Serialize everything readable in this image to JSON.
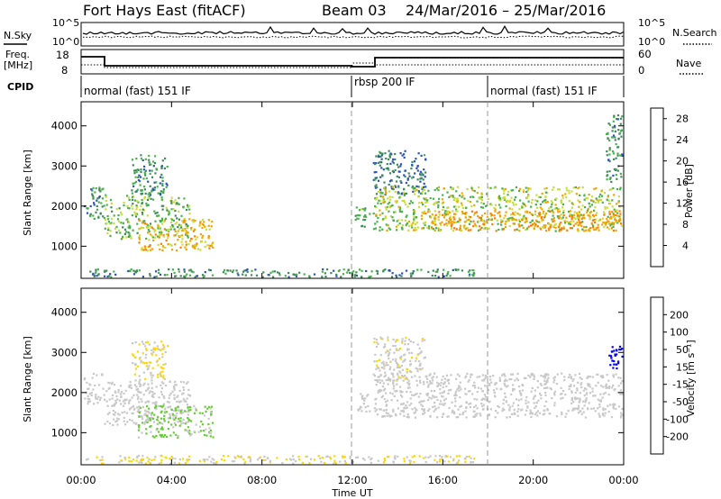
{
  "header": {
    "radar_title": "Fort Hays East (fitACF)",
    "beam_label": "Beam 03",
    "date_range": "24/Mar/2016 – 25/Mar/2016"
  },
  "summary": {
    "nsky_label": "N.Sky",
    "nsearch_label": "N.Search",
    "noise_ticks": [
      "10^5",
      "10^0"
    ],
    "freq_label": "Freq.",
    "freq_unit": "[MHz]",
    "freq_ticks": [
      "18",
      "8"
    ],
    "nave_label": "Nave",
    "nave_ticks": [
      "60",
      "0"
    ],
    "cpid_label": "CPID",
    "modes": [
      {
        "label": "normal (fast) 151 IF",
        "start_hour": 0
      },
      {
        "label": "rbsp 200 IF",
        "start_hour": 12
      },
      {
        "label": "normal (fast) 151 IF",
        "start_hour": 18
      }
    ]
  },
  "xaxis": {
    "label": "Time UT",
    "ticks": [
      "00:00",
      "04:00",
      "08:00",
      "12:00",
      "16:00",
      "20:00",
      "00:00"
    ],
    "range_hours": [
      0,
      24
    ]
  },
  "chart_data": [
    {
      "type": "heatmap",
      "title": "",
      "ylabel": "Slant Range [km]",
      "yticks": [
        "1000",
        "2000",
        "3000",
        "4000"
      ],
      "ylim": [
        200,
        4600
      ],
      "xlim": [
        0,
        24
      ],
      "colorbar": {
        "label": "Power [dB]",
        "ticks": [
          "4",
          "8",
          "12",
          "16",
          "20",
          "24",
          "28"
        ],
        "range": [
          0,
          30
        ],
        "colors": [
          "#0000ff",
          "#2a52b8",
          "#3e8a5a",
          "#46b34a",
          "#c8dc3a",
          "#f2a500",
          "#ff7a00",
          "#ff2a00"
        ]
      },
      "dashed_lines_hours": [
        12,
        18
      ],
      "regions": [
        {
          "t0": 0.1,
          "t1": 1.0,
          "r0": 1700,
          "r1": 2500,
          "v": 10
        },
        {
          "t0": 1.0,
          "t1": 4.8,
          "r0": 1200,
          "r1": 2300,
          "v": 14
        },
        {
          "t0": 2.5,
          "t1": 5.8,
          "r0": 900,
          "r1": 1700,
          "v": 20
        },
        {
          "t0": 2.2,
          "t1": 3.8,
          "r0": 2300,
          "r1": 3300,
          "v": 10
        },
        {
          "t0": 12.1,
          "t1": 12.8,
          "r0": 1500,
          "r1": 2000,
          "v": 12
        },
        {
          "t0": 12.9,
          "t1": 15.2,
          "r0": 2300,
          "r1": 3400,
          "v": 8
        },
        {
          "t0": 12.9,
          "t1": 23.9,
          "r0": 1400,
          "r1": 2500,
          "v": 16
        },
        {
          "t0": 15.0,
          "t1": 23.9,
          "r0": 1400,
          "r1": 1900,
          "v": 22
        },
        {
          "t0": 23.2,
          "t1": 23.9,
          "r0": 2600,
          "r1": 4300,
          "v": 10
        },
        {
          "t0": 0.2,
          "t1": 17.5,
          "r0": 250,
          "r1": 450,
          "v": 10
        }
      ]
    },
    {
      "type": "heatmap",
      "title": "",
      "ylabel": "Slant Range [km]",
      "yticks": [
        "1000",
        "2000",
        "3000",
        "4000"
      ],
      "ylim": [
        200,
        4600
      ],
      "xlim": [
        0,
        24
      ],
      "colorbar": {
        "label": "Velocity [m s⁻¹]",
        "ticks": [
          "200",
          "100",
          "50",
          "15",
          "-15",
          "-50",
          "-100",
          "-200"
        ],
        "range": [
          -200,
          200
        ],
        "colors": [
          "#0000ff",
          "#1f3fc0",
          "#2e8b57",
          "#66cc33",
          "#c8c8c8",
          "#ffd700",
          "#ffa500",
          "#ff6600",
          "#ff0000"
        ]
      },
      "dashed_lines_hours": [
        12,
        18
      ],
      "regions": [
        {
          "t0": 0.1,
          "t1": 1.0,
          "r0": 1700,
          "r1": 2500,
          "v": 0
        },
        {
          "t0": 1.0,
          "t1": 4.8,
          "r0": 1200,
          "r1": 2300,
          "v": 0
        },
        {
          "t0": 2.5,
          "t1": 5.8,
          "r0": 900,
          "r1": 1700,
          "v": 30
        },
        {
          "t0": 2.2,
          "t1": 3.8,
          "r0": 2300,
          "r1": 3300,
          "v": -20
        },
        {
          "t0": 12.1,
          "t1": 12.8,
          "r0": 1500,
          "r1": 2000,
          "v": 0
        },
        {
          "t0": 12.9,
          "t1": 15.2,
          "r0": 2300,
          "r1": 3400,
          "v": -10
        },
        {
          "t0": 12.9,
          "t1": 23.9,
          "r0": 1400,
          "r1": 2500,
          "v": 0
        },
        {
          "t0": 23.2,
          "t1": 23.9,
          "r0": 2600,
          "r1": 3200,
          "v": 180
        },
        {
          "t0": 0.2,
          "t1": 17.5,
          "r0": 250,
          "r1": 450,
          "v": -20
        }
      ]
    }
  ]
}
